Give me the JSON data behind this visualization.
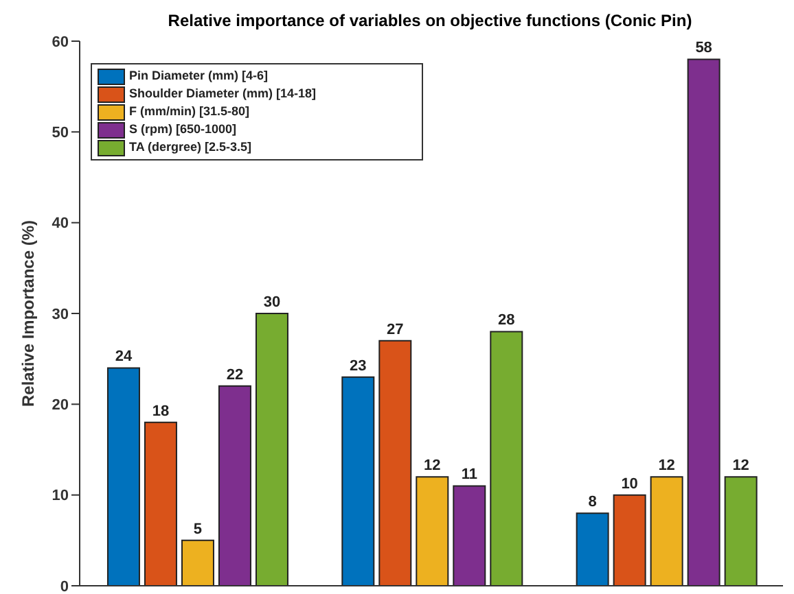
{
  "chart_data": {
    "type": "bar",
    "title": "Relative importance of variables on objective functions (Conic Pin)",
    "ylabel": "Relative Importance (%)",
    "categories": [
      null,
      null,
      null
    ],
    "series": [
      {
        "name": "Pin Diameter (mm) [4-6]",
        "color": "#0072bd",
        "values": [
          24,
          23,
          8
        ]
      },
      {
        "name": "Shoulder Diameter (mm) [14-18]",
        "color": "#d95319",
        "values": [
          18,
          27,
          10
        ]
      },
      {
        "name": "F (mm/min) [31.5-80]",
        "color": "#edb120",
        "values": [
          5,
          12,
          12
        ]
      },
      {
        "name": "S (rpm) [650-1000]",
        "color": "#7e2f8e",
        "values": [
          22,
          11,
          58
        ]
      },
      {
        "name": "TA (dergree) [2.5-3.5]",
        "color": "#77ac30",
        "values": [
          30,
          28,
          12
        ]
      }
    ],
    "ylim": [
      0,
      60
    ],
    "yticks": [
      0,
      10,
      20,
      30,
      40,
      50,
      60
    ],
    "data_labels": true,
    "legend": "top left",
    "grid": false
  }
}
